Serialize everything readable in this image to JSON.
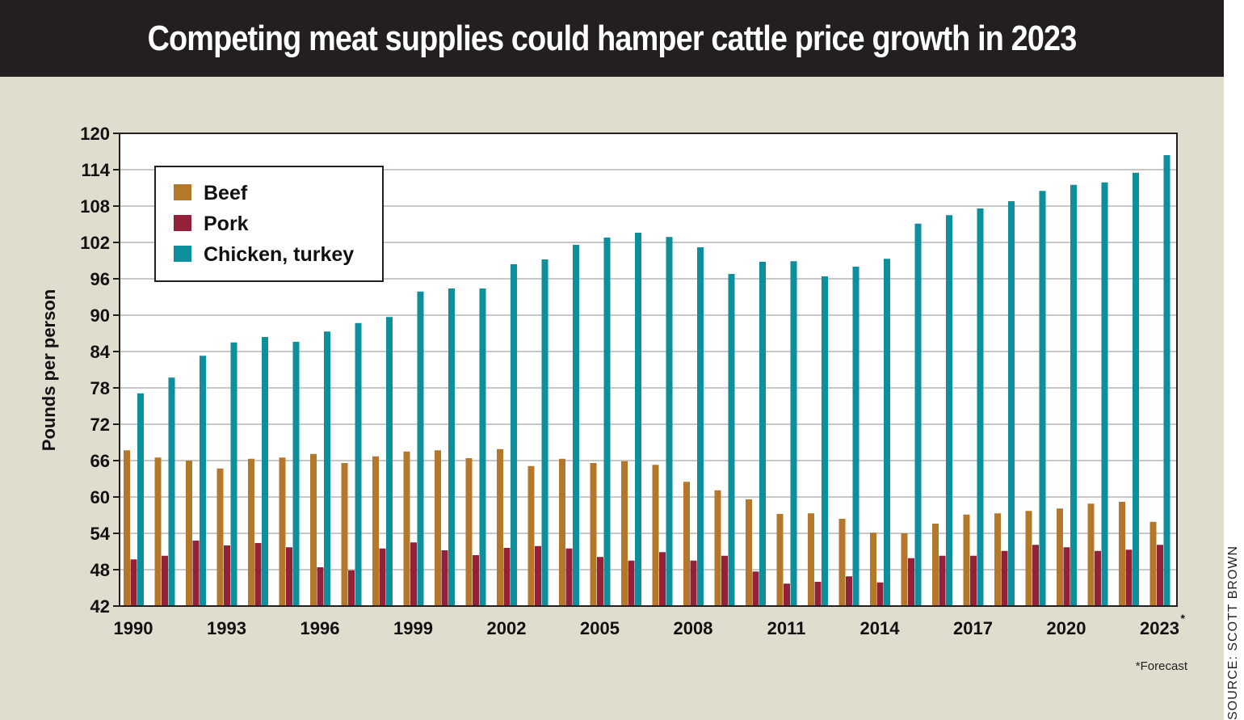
{
  "title": "Competing meat supplies could hamper cattle price growth in 2023",
  "source": "SOURCE: SCOTT BROWN",
  "footnote": "*Forecast",
  "chart_data": {
    "type": "bar",
    "title": "Competing meat supplies could hamper cattle price growth in 2023",
    "xlabel": "",
    "ylabel": "Pounds per person",
    "ylim": [
      42,
      120
    ],
    "yticks": [
      42,
      48,
      54,
      60,
      66,
      72,
      78,
      84,
      90,
      96,
      102,
      108,
      114,
      120
    ],
    "xtick_labels": [
      "1990",
      "1993",
      "1996",
      "1999",
      "2002",
      "2005",
      "2008",
      "2011",
      "2014",
      "2017",
      "2020",
      "2023"
    ],
    "xtick_suffix_2023": "*",
    "grid": true,
    "legend_position": "top-left",
    "categories": [
      1990,
      1991,
      1992,
      1993,
      1994,
      1995,
      1996,
      1997,
      1998,
      1999,
      2000,
      2001,
      2002,
      2003,
      2004,
      2005,
      2006,
      2007,
      2008,
      2009,
      2010,
      2011,
      2012,
      2013,
      2014,
      2015,
      2016,
      2017,
      2018,
      2019,
      2020,
      2021,
      2022,
      2023
    ],
    "series": [
      {
        "name": "Beef",
        "color": "#b5782b",
        "values": [
          67.7,
          66.5,
          66.0,
          64.7,
          66.3,
          66.5,
          67.1,
          65.6,
          66.7,
          67.5,
          67.7,
          66.4,
          67.9,
          65.1,
          66.3,
          65.6,
          65.9,
          65.3,
          62.5,
          61.1,
          59.6,
          57.2,
          57.3,
          56.4,
          54.1,
          54.0,
          55.6,
          57.1,
          57.3,
          57.7,
          58.1,
          58.9,
          59.2,
          55.9
        ]
      },
      {
        "name": "Pork",
        "color": "#93213a",
        "values": [
          49.7,
          50.3,
          52.8,
          52.0,
          52.4,
          51.7,
          48.4,
          47.9,
          51.5,
          52.5,
          51.2,
          50.4,
          51.6,
          51.9,
          51.5,
          50.1,
          49.5,
          50.9,
          49.5,
          50.3,
          47.7,
          45.7,
          46.0,
          46.9,
          45.9,
          49.9,
          50.3,
          50.3,
          51.1,
          52.1,
          51.7,
          51.1,
          51.3,
          52.1
        ]
      },
      {
        "name": "Chicken, turkey",
        "color": "#0e8f9c",
        "values": [
          77.1,
          79.7,
          83.3,
          85.5,
          86.4,
          85.6,
          87.3,
          88.7,
          89.7,
          93.9,
          94.4,
          94.4,
          98.4,
          99.2,
          101.6,
          102.8,
          103.6,
          102.9,
          101.2,
          96.8,
          98.8,
          98.9,
          96.4,
          98.0,
          99.3,
          105.1,
          106.5,
          107.6,
          108.8,
          110.5,
          111.5,
          111.9,
          113.5,
          116.4
        ]
      }
    ]
  }
}
